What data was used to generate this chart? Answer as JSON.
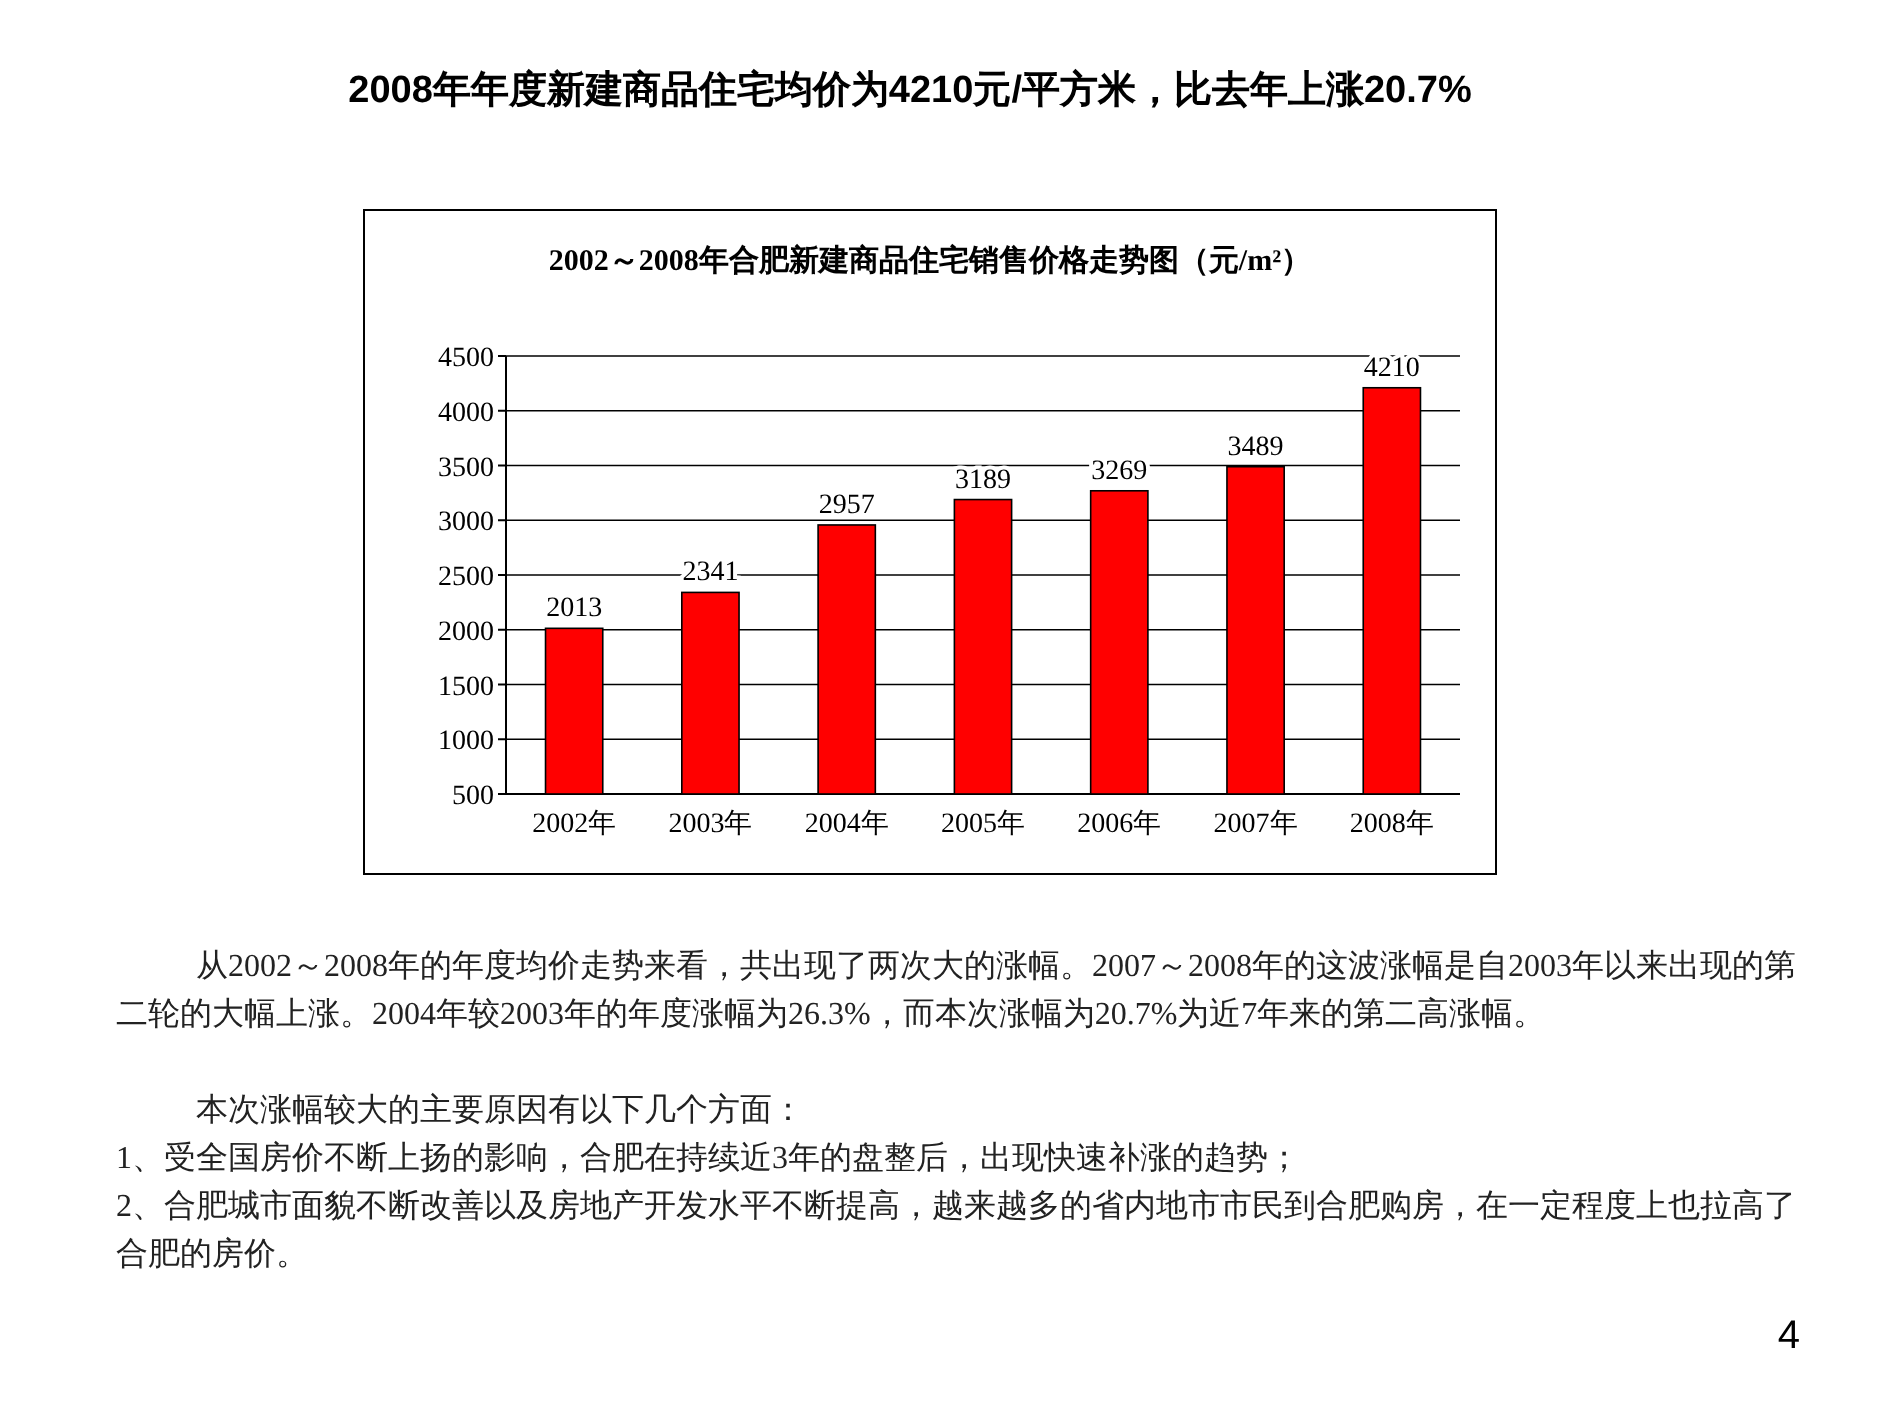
{
  "chart_data": {
    "type": "bar",
    "title": "2002～2008年合肥新建商品住宅销售价格走势图（元/m²）",
    "categories": [
      "2002年",
      "2003年",
      "2004年",
      "2005年",
      "2006年",
      "2007年",
      "2008年"
    ],
    "values": [
      2013,
      2341,
      2957,
      3189,
      3269,
      3489,
      4210
    ],
    "color": "#ff0000",
    "ylim": [
      500,
      4500
    ],
    "yticks": [
      500,
      1000,
      1500,
      2000,
      2500,
      3000,
      3500,
      4000,
      4500
    ],
    "grid": "y",
    "data_labels": true,
    "annotations": [
      "2008年年度新建商品住宅均价为4210元/平方米，比去年上涨20.7%",
      "从2002～2008年的年度均价走势来看，共出现了两次大的涨幅。2007～2008年的这波涨幅是自2003年以来出现的第二轮的大幅上涨。2004年较2003年的年度涨幅为26.3%，而本次涨幅为20.7%为近7年来的第二高涨幅。",
      "本次涨幅较大的主要原因有以下几个方面：",
      "1、受全国房价不断上扬的影响，合肥在持续近3年的盘整后，出现快速补涨的趋势；",
      "2、合肥城市面貌不断改善以及房地产开发水平不断提高，越来越多的省内地市市民到合肥购房，在一定程度上也拉高了合肥的房价。",
      "4"
    ]
  }
}
